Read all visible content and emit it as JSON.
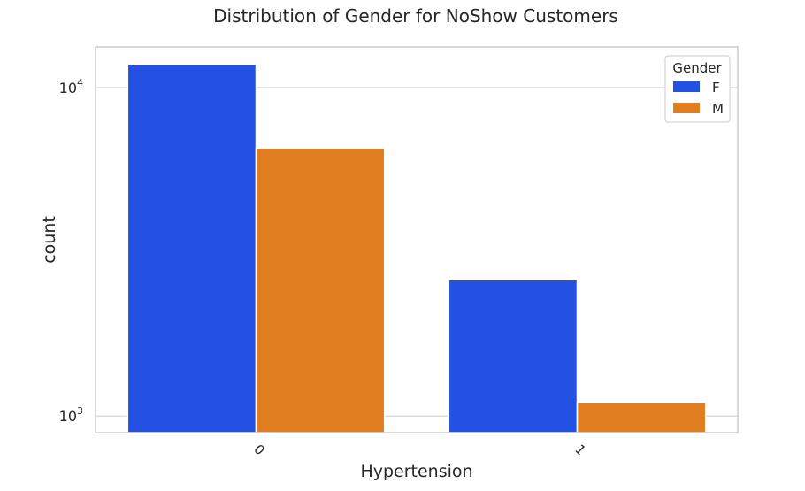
{
  "chart_data": {
    "type": "bar",
    "title": "Distribution of Gender for NoShow Customers",
    "xlabel": "Hypertension",
    "ylabel": "count",
    "categories": [
      "0",
      "1"
    ],
    "series": [
      {
        "name": "F",
        "values": [
          11800,
          2600
        ]
      },
      {
        "name": "M",
        "values": [
          6550,
          1100
        ]
      }
    ],
    "yscale": "log",
    "ylim": [
      890,
      13300
    ],
    "yticks": [
      {
        "value": 1000,
        "base": "10",
        "exp": "3"
      },
      {
        "value": 10000,
        "base": "10",
        "exp": "4"
      }
    ],
    "grid": true,
    "legend": {
      "title": "Gender",
      "placement": "top-right"
    },
    "colors": {
      "F": "#2351e3",
      "M": "#e07d20",
      "grid": "#dddddd",
      "frame": "#cccccc"
    },
    "xtick_rotation": 45
  }
}
